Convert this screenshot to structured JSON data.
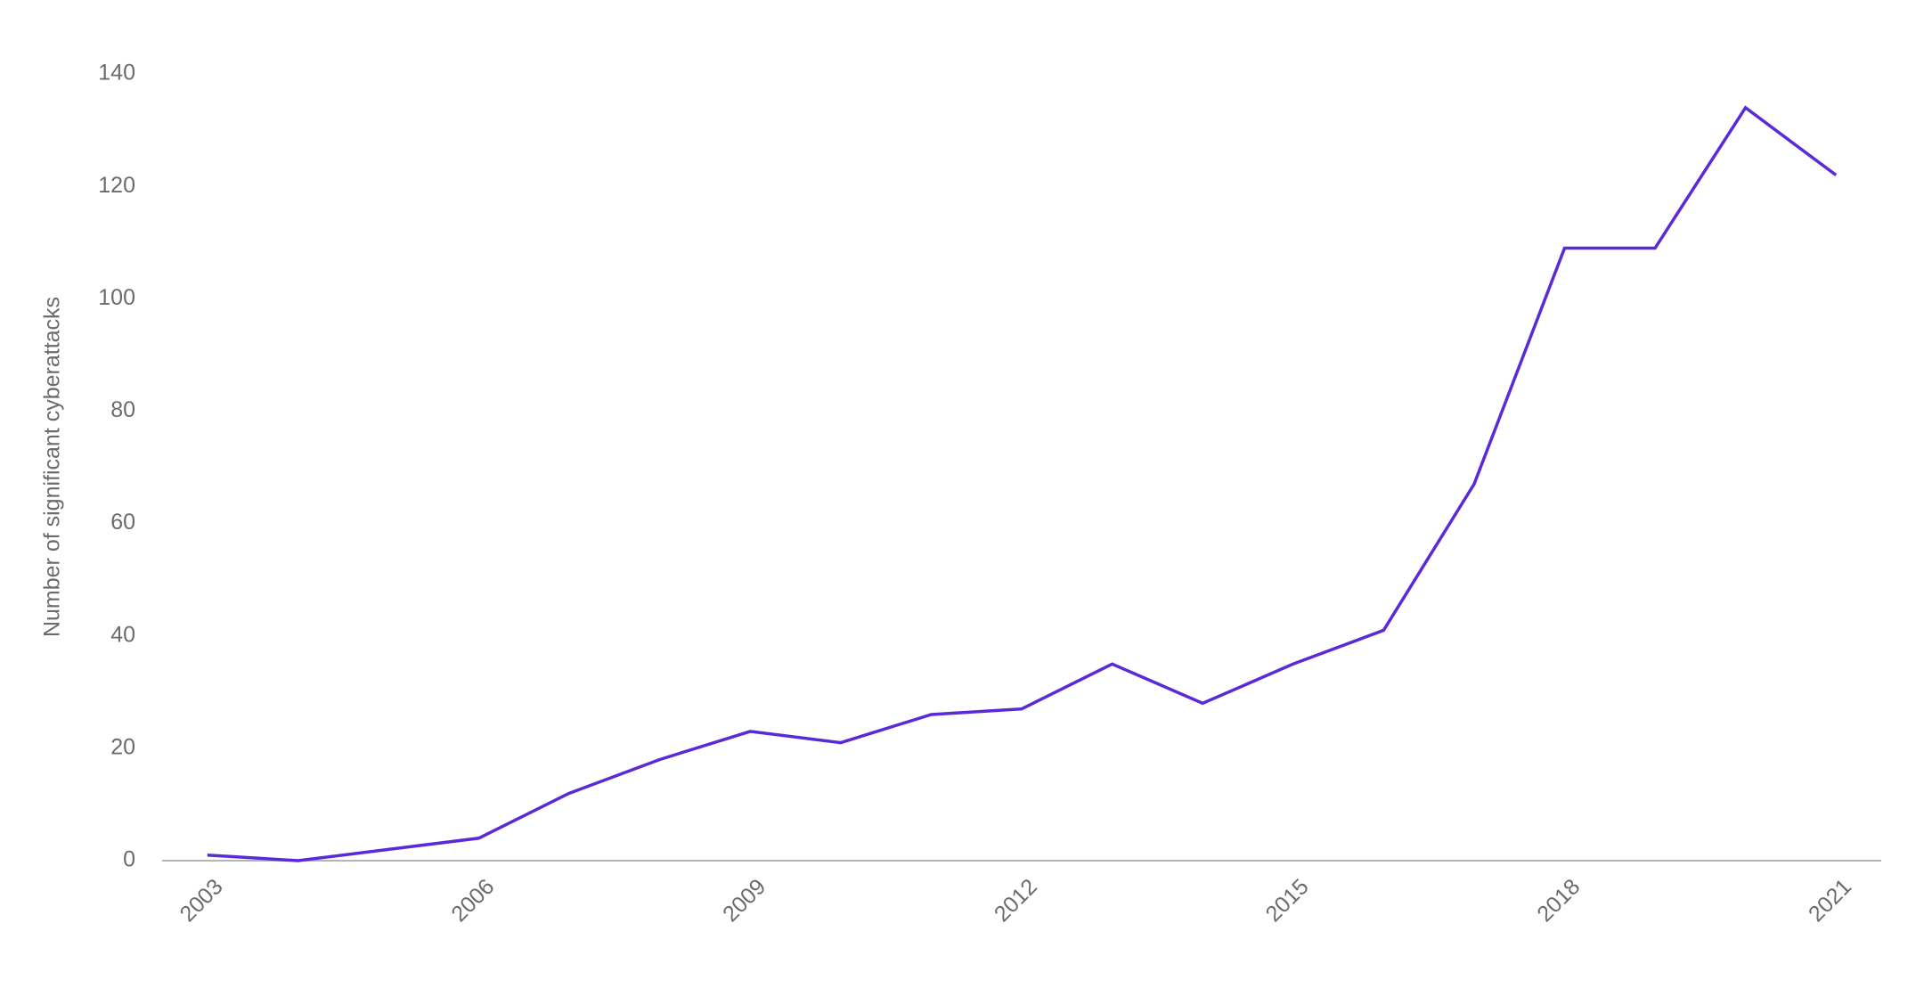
{
  "chart_data": {
    "type": "line",
    "y_label": "Number of significant cyberattacks",
    "x": [
      2003,
      2004,
      2005,
      2006,
      2007,
      2008,
      2009,
      2010,
      2011,
      2012,
      2013,
      2014,
      2015,
      2016,
      2017,
      2018,
      2019,
      2020,
      2021
    ],
    "series": [
      {
        "color": "#5a2ad8",
        "values": [
          1,
          0,
          2,
          4,
          12,
          18,
          23,
          21,
          26,
          27,
          35,
          28,
          35,
          41,
          67,
          109,
          109,
          134,
          122
        ]
      }
    ],
    "xlim": [
      2002.5,
      2021.5
    ],
    "xticks": [
      2003,
      2006,
      2009,
      2012,
      2015,
      2018,
      2021
    ],
    "ylim": [
      0,
      140
    ],
    "yticks": [
      0,
      20,
      40,
      60,
      80,
      100,
      120,
      140
    ],
    "grid": false
  }
}
